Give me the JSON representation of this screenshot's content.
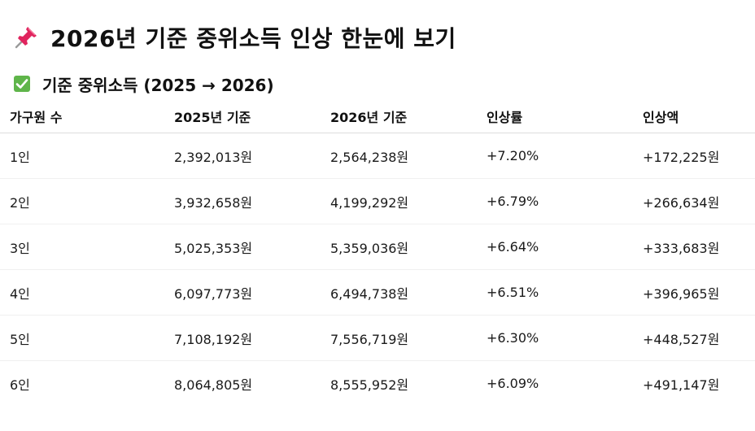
{
  "title": "2026년 기준 중위소득 인상 한눈에 보기",
  "section_title": "기준 중위소득 (2025 → 2026)",
  "icons": {
    "title_icon": "pushpin-icon",
    "section_icon": "check-mark-button-icon"
  },
  "colors": {
    "pin_red": "#e0245e",
    "check_green": "#5fb54a"
  },
  "table": {
    "headers": [
      "가구원 수",
      "2025년 기준",
      "2026년 기준",
      "인상률",
      "인상액"
    ],
    "rows": [
      [
        "1인",
        "2,392,013원",
        "2,564,238원",
        "+7.20%",
        "+172,225원"
      ],
      [
        "2인",
        "3,932,658원",
        "4,199,292원",
        "+6.79%",
        "+266,634원"
      ],
      [
        "3인",
        "5,025,353원",
        "5,359,036원",
        "+6.64%",
        "+333,683원"
      ],
      [
        "4인",
        "6,097,773원",
        "6,494,738원",
        "+6.51%",
        "+396,965원"
      ],
      [
        "5인",
        "7,108,192원",
        "7,556,719원",
        "+6.30%",
        "+448,527원"
      ],
      [
        "6인",
        "8,064,805원",
        "8,555,952원",
        "+6.09%",
        "+491,147원"
      ]
    ]
  }
}
